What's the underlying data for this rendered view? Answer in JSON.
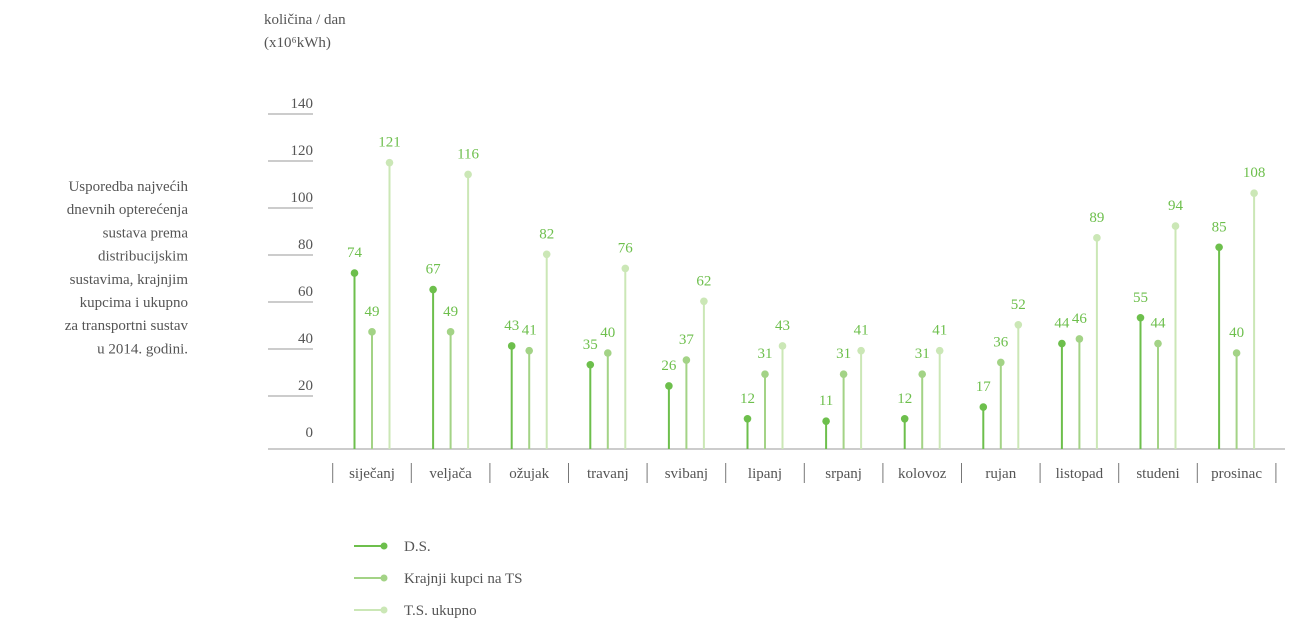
{
  "chart_data": {
    "type": "lollipop",
    "y_label": [
      "količina / dan",
      "(x10⁶kWh)"
    ],
    "description": [
      "Usporedba najvećih",
      "dnevnih opterećenja",
      "sustava prema",
      "distribucijskim",
      "sustavima, krajnjim",
      "kupcima i ukupno",
      "za transportni sustav",
      "u 2014. godini."
    ],
    "categories": [
      "siječanj",
      "veljača",
      "ožujak",
      "travanj",
      "svibanj",
      "lipanj",
      "srpanj",
      "kolovoz",
      "rujan",
      "listopad",
      "studeni",
      "prosinac"
    ],
    "series": [
      {
        "name": "D.S.",
        "color": "#6dbf4c",
        "values": [
          74,
          67,
          43,
          35,
          26,
          12,
          11,
          12,
          17,
          44,
          55,
          85
        ]
      },
      {
        "name": "Krajnji kupci na TS",
        "color": "#a3d386",
        "values": [
          49,
          49,
          41,
          40,
          37,
          31,
          31,
          31,
          36,
          46,
          44,
          40
        ]
      },
      {
        "name": "T.S. ukupno",
        "color": "#cbe7b6",
        "values": [
          121,
          116,
          82,
          76,
          62,
          43,
          41,
          41,
          52,
          89,
          94,
          108
        ]
      }
    ],
    "ylim": [
      0,
      140
    ],
    "yticks": [
      0,
      20,
      40,
      60,
      80,
      100,
      120,
      140
    ],
    "label_color": "#6dbf4c"
  }
}
